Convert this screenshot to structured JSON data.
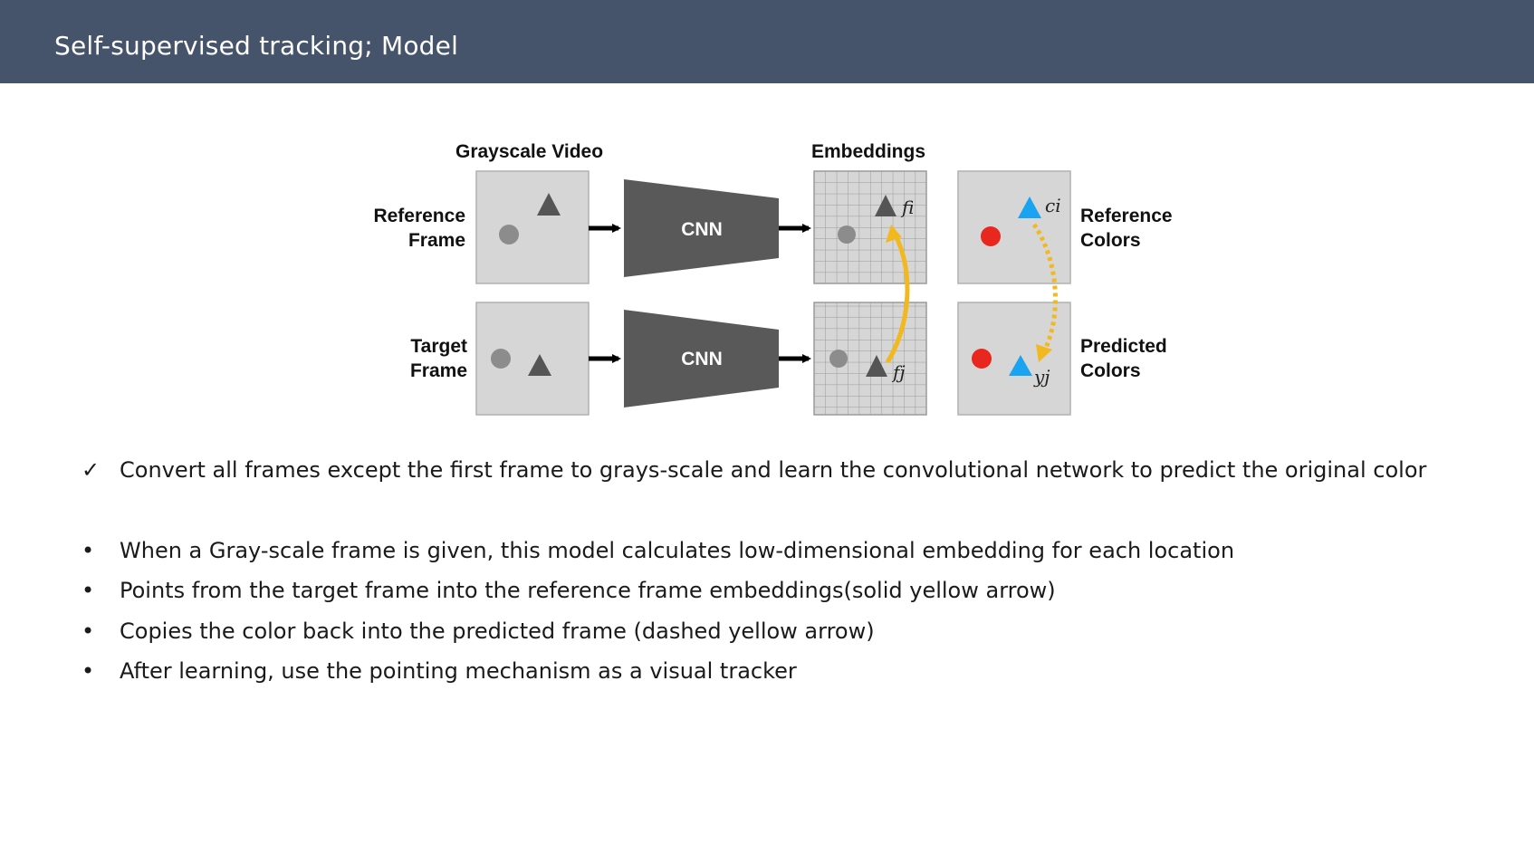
{
  "slide": {
    "title": "Self-supervised tracking; Model"
  },
  "diagram": {
    "col_grayscale": "Grayscale Video",
    "col_embeddings": "Embeddings",
    "row_reference_line1": "Reference",
    "row_reference_line2": "Frame",
    "row_target_line1": "Target",
    "row_target_line2": "Frame",
    "cnn_top": "CNN",
    "cnn_bottom": "CNN",
    "ref_colors_line1": "Reference",
    "ref_colors_line2": "Colors",
    "pred_colors_line1": "Predicted",
    "pred_colors_line2": "Colors",
    "label_fi": "fi",
    "label_fj": "fj",
    "label_ci": "ci",
    "label_yj": "yj",
    "colors": {
      "red": "#e8281e",
      "blue": "#1aa3f0",
      "yellow": "#f2b81f",
      "cnn": "#595959",
      "frame": "#d6d6d6"
    }
  },
  "checklist": [
    {
      "marker": "✓",
      "text": "Convert all frames except the first frame to grays-scale and learn the convolutional network to predict the original color"
    }
  ],
  "bullets": [
    {
      "marker": "•",
      "text": "When a Gray-scale frame is given, this model calculates low-dimensional embedding for each location"
    },
    {
      "marker": "•",
      "text": "Points from the target frame into the reference frame embeddings(solid yellow arrow)"
    },
    {
      "marker": "•",
      "text": "Copies the color back into the predicted frame (dashed yellow arrow)"
    },
    {
      "marker": "•",
      "text": "After learning, use the pointing mechanism as a visual tracker"
    }
  ]
}
